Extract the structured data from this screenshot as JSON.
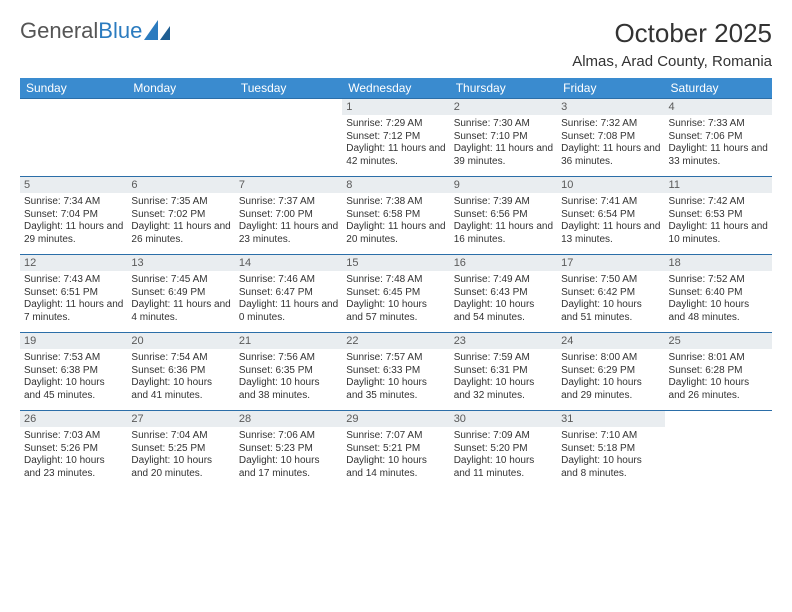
{
  "brand": {
    "part1": "General",
    "part2": "Blue"
  },
  "title": "October 2025",
  "location": "Almas, Arad County, Romania",
  "colors": {
    "header_bg": "#3a8bcf",
    "header_fg": "#ffffff",
    "daynum_bg": "#e9edf0",
    "rule": "#2b6ea8",
    "brand_blue": "#2b7bbf"
  },
  "weekdays": [
    "Sunday",
    "Monday",
    "Tuesday",
    "Wednesday",
    "Thursday",
    "Friday",
    "Saturday"
  ],
  "weeks": [
    [
      {
        "n": "",
        "sr": "",
        "ss": "",
        "dl": ""
      },
      {
        "n": "",
        "sr": "",
        "ss": "",
        "dl": ""
      },
      {
        "n": "",
        "sr": "",
        "ss": "",
        "dl": ""
      },
      {
        "n": "1",
        "sr": "Sunrise: 7:29 AM",
        "ss": "Sunset: 7:12 PM",
        "dl": "Daylight: 11 hours and 42 minutes."
      },
      {
        "n": "2",
        "sr": "Sunrise: 7:30 AM",
        "ss": "Sunset: 7:10 PM",
        "dl": "Daylight: 11 hours and 39 minutes."
      },
      {
        "n": "3",
        "sr": "Sunrise: 7:32 AM",
        "ss": "Sunset: 7:08 PM",
        "dl": "Daylight: 11 hours and 36 minutes."
      },
      {
        "n": "4",
        "sr": "Sunrise: 7:33 AM",
        "ss": "Sunset: 7:06 PM",
        "dl": "Daylight: 11 hours and 33 minutes."
      }
    ],
    [
      {
        "n": "5",
        "sr": "Sunrise: 7:34 AM",
        "ss": "Sunset: 7:04 PM",
        "dl": "Daylight: 11 hours and 29 minutes."
      },
      {
        "n": "6",
        "sr": "Sunrise: 7:35 AM",
        "ss": "Sunset: 7:02 PM",
        "dl": "Daylight: 11 hours and 26 minutes."
      },
      {
        "n": "7",
        "sr": "Sunrise: 7:37 AM",
        "ss": "Sunset: 7:00 PM",
        "dl": "Daylight: 11 hours and 23 minutes."
      },
      {
        "n": "8",
        "sr": "Sunrise: 7:38 AM",
        "ss": "Sunset: 6:58 PM",
        "dl": "Daylight: 11 hours and 20 minutes."
      },
      {
        "n": "9",
        "sr": "Sunrise: 7:39 AM",
        "ss": "Sunset: 6:56 PM",
        "dl": "Daylight: 11 hours and 16 minutes."
      },
      {
        "n": "10",
        "sr": "Sunrise: 7:41 AM",
        "ss": "Sunset: 6:54 PM",
        "dl": "Daylight: 11 hours and 13 minutes."
      },
      {
        "n": "11",
        "sr": "Sunrise: 7:42 AM",
        "ss": "Sunset: 6:53 PM",
        "dl": "Daylight: 11 hours and 10 minutes."
      }
    ],
    [
      {
        "n": "12",
        "sr": "Sunrise: 7:43 AM",
        "ss": "Sunset: 6:51 PM",
        "dl": "Daylight: 11 hours and 7 minutes."
      },
      {
        "n": "13",
        "sr": "Sunrise: 7:45 AM",
        "ss": "Sunset: 6:49 PM",
        "dl": "Daylight: 11 hours and 4 minutes."
      },
      {
        "n": "14",
        "sr": "Sunrise: 7:46 AM",
        "ss": "Sunset: 6:47 PM",
        "dl": "Daylight: 11 hours and 0 minutes."
      },
      {
        "n": "15",
        "sr": "Sunrise: 7:48 AM",
        "ss": "Sunset: 6:45 PM",
        "dl": "Daylight: 10 hours and 57 minutes."
      },
      {
        "n": "16",
        "sr": "Sunrise: 7:49 AM",
        "ss": "Sunset: 6:43 PM",
        "dl": "Daylight: 10 hours and 54 minutes."
      },
      {
        "n": "17",
        "sr": "Sunrise: 7:50 AM",
        "ss": "Sunset: 6:42 PM",
        "dl": "Daylight: 10 hours and 51 minutes."
      },
      {
        "n": "18",
        "sr": "Sunrise: 7:52 AM",
        "ss": "Sunset: 6:40 PM",
        "dl": "Daylight: 10 hours and 48 minutes."
      }
    ],
    [
      {
        "n": "19",
        "sr": "Sunrise: 7:53 AM",
        "ss": "Sunset: 6:38 PM",
        "dl": "Daylight: 10 hours and 45 minutes."
      },
      {
        "n": "20",
        "sr": "Sunrise: 7:54 AM",
        "ss": "Sunset: 6:36 PM",
        "dl": "Daylight: 10 hours and 41 minutes."
      },
      {
        "n": "21",
        "sr": "Sunrise: 7:56 AM",
        "ss": "Sunset: 6:35 PM",
        "dl": "Daylight: 10 hours and 38 minutes."
      },
      {
        "n": "22",
        "sr": "Sunrise: 7:57 AM",
        "ss": "Sunset: 6:33 PM",
        "dl": "Daylight: 10 hours and 35 minutes."
      },
      {
        "n": "23",
        "sr": "Sunrise: 7:59 AM",
        "ss": "Sunset: 6:31 PM",
        "dl": "Daylight: 10 hours and 32 minutes."
      },
      {
        "n": "24",
        "sr": "Sunrise: 8:00 AM",
        "ss": "Sunset: 6:29 PM",
        "dl": "Daylight: 10 hours and 29 minutes."
      },
      {
        "n": "25",
        "sr": "Sunrise: 8:01 AM",
        "ss": "Sunset: 6:28 PM",
        "dl": "Daylight: 10 hours and 26 minutes."
      }
    ],
    [
      {
        "n": "26",
        "sr": "Sunrise: 7:03 AM",
        "ss": "Sunset: 5:26 PM",
        "dl": "Daylight: 10 hours and 23 minutes."
      },
      {
        "n": "27",
        "sr": "Sunrise: 7:04 AM",
        "ss": "Sunset: 5:25 PM",
        "dl": "Daylight: 10 hours and 20 minutes."
      },
      {
        "n": "28",
        "sr": "Sunrise: 7:06 AM",
        "ss": "Sunset: 5:23 PM",
        "dl": "Daylight: 10 hours and 17 minutes."
      },
      {
        "n": "29",
        "sr": "Sunrise: 7:07 AM",
        "ss": "Sunset: 5:21 PM",
        "dl": "Daylight: 10 hours and 14 minutes."
      },
      {
        "n": "30",
        "sr": "Sunrise: 7:09 AM",
        "ss": "Sunset: 5:20 PM",
        "dl": "Daylight: 10 hours and 11 minutes."
      },
      {
        "n": "31",
        "sr": "Sunrise: 7:10 AM",
        "ss": "Sunset: 5:18 PM",
        "dl": "Daylight: 10 hours and 8 minutes."
      },
      {
        "n": "",
        "sr": "",
        "ss": "",
        "dl": ""
      }
    ]
  ]
}
